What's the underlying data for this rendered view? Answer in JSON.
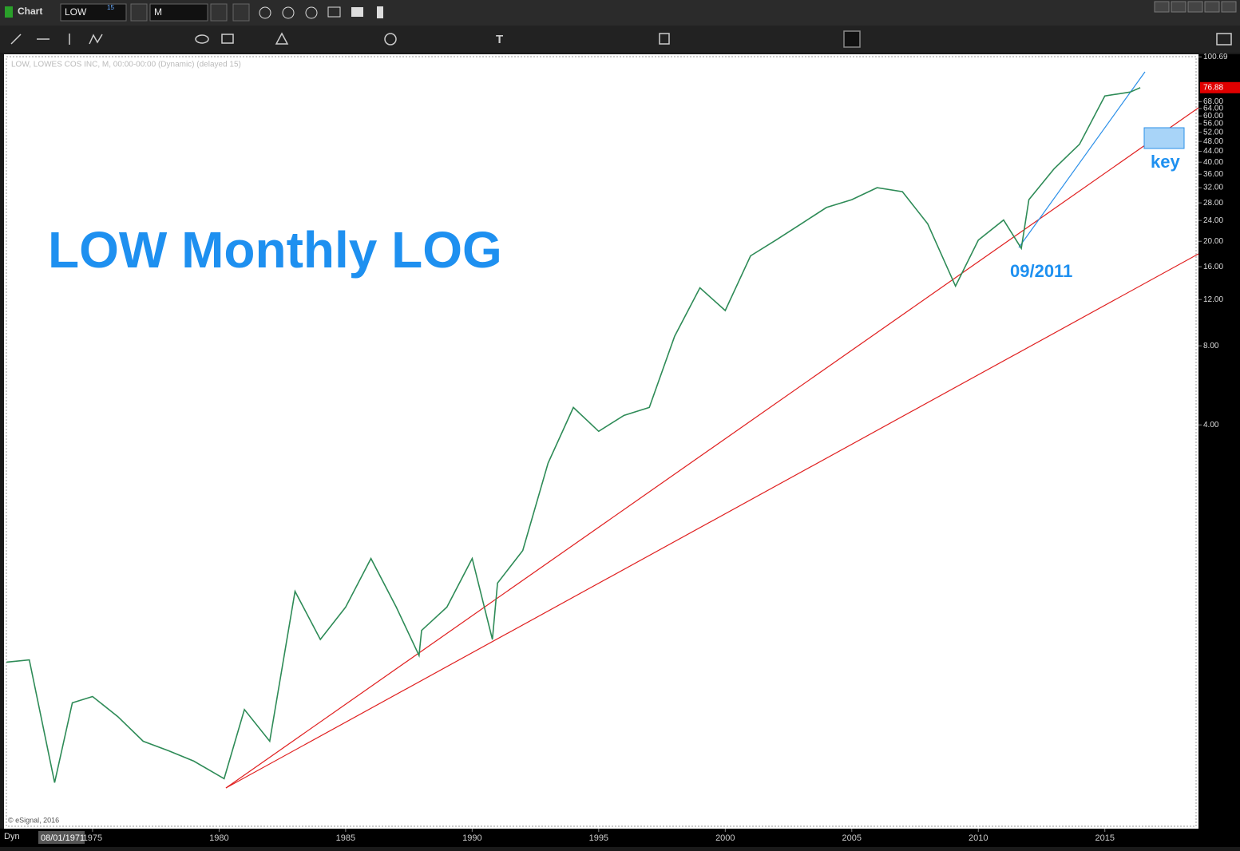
{
  "ui": {
    "window_title": "Chart",
    "symbol": "LOW",
    "symbol_badge": "15",
    "interval": "M",
    "chart_info": "LOW, LOWES COS INC, M, 00:00-00:00 (Dynamic) (delayed 15)",
    "copyright": "© eSignal, 2016",
    "mode": "Dyn",
    "start_date": "08/01/1971",
    "annotation_title": "LOW Monthly LOG",
    "annotation_date": "09/2011",
    "annotation_key": "key"
  },
  "chart_data": {
    "type": "line",
    "log_scale": true,
    "grid": false,
    "x": [
      1971.6,
      1972.5,
      1973.5,
      1974.2,
      1975,
      1976,
      1977,
      1978,
      1979,
      1980.2,
      1981,
      1982,
      1983,
      1984,
      1985,
      1986,
      1987,
      1987.9,
      1988,
      1989,
      1990,
      1990.8,
      1991,
      1992,
      1993,
      1994,
      1995,
      1996,
      1997,
      1998,
      1999,
      2000,
      2001,
      2002,
      2003,
      2004,
      2005,
      2006,
      2007,
      2008,
      2009.1,
      2010,
      2011,
      2011.7,
      2012,
      2013,
      2014,
      2015,
      2016,
      2016.4
    ],
    "series": [
      {
        "name": "LOW",
        "color": "#2e8b57",
        "values": [
          0.5,
          0.51,
          0.174,
          0.35,
          0.37,
          0.31,
          0.25,
          0.23,
          0.21,
          0.18,
          0.33,
          0.25,
          0.93,
          0.61,
          0.81,
          1.24,
          0.81,
          0.53,
          0.66,
          0.81,
          1.24,
          0.61,
          1.0,
          1.33,
          2.86,
          4.66,
          3.78,
          4.35,
          4.66,
          8.7,
          13.3,
          10.9,
          17.6,
          20.2,
          23.3,
          26.9,
          28.8,
          32.0,
          30.9,
          23.3,
          13.5,
          20.2,
          24.1,
          18.8,
          28.8,
          37.8,
          46.8,
          71.5,
          74,
          76.88
        ]
      }
    ],
    "xlim": [
      1971.5,
      2018.7
    ],
    "xticks": [
      1975,
      1980,
      1985,
      1990,
      1995,
      2000,
      2005,
      2010,
      2015
    ],
    "ylim": [
      0.117,
      103
    ],
    "yticks": [
      {
        "value": 4,
        "label": "4.00"
      },
      {
        "value": 8,
        "label": "8.00"
      },
      {
        "value": 12,
        "label": "12.00"
      },
      {
        "value": 16,
        "label": "16.00"
      },
      {
        "value": 20,
        "label": "20.00"
      },
      {
        "value": 24,
        "label": "24.00"
      },
      {
        "value": 28,
        "label": "28.00"
      },
      {
        "value": 32,
        "label": "32.00"
      },
      {
        "value": 36,
        "label": "36.00"
      },
      {
        "value": 40,
        "label": "40.00"
      },
      {
        "value": 44,
        "label": "44.00"
      },
      {
        "value": 48,
        "label": "48.00"
      },
      {
        "value": 52,
        "label": "52.00"
      },
      {
        "value": 56,
        "label": "56.00"
      },
      {
        "value": 60,
        "label": "60.00"
      },
      {
        "value": 64,
        "label": "64.00"
      },
      {
        "value": 68,
        "label": "68.00"
      },
      100.69
    ]
  }
}
